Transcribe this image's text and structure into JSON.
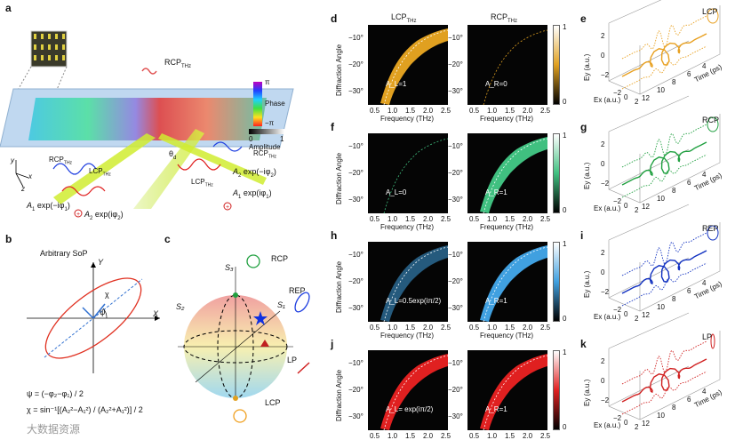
{
  "panels": {
    "a": "a",
    "b": "b",
    "c": "c",
    "d": "d",
    "e": "e",
    "f": "f",
    "g": "g",
    "h": "h",
    "i": "i",
    "j": "j",
    "k": "k"
  },
  "panel_a": {
    "rcp_incident": "RCP",
    "rcp_incident_sub": "THz",
    "rcp_out_sub": "THz",
    "lcp_out_sub": "THz",
    "rcp_label": "RCP",
    "lcp_label": "LCP",
    "theta": "θ",
    "theta_sub": "d",
    "left_amp_1": "A",
    "left_amp_1_rest": "exp(−iφ",
    "left_amp_2_rest": "exp(iφ",
    "right_amp_1_rest": "exp(−iφ",
    "right_amp_2_rest": "exp(iφ",
    "colorbar_top": "π",
    "colorbar_bottom": "−π",
    "colorbar_title": "Phase",
    "amp_0": "0",
    "amp_1": "1",
    "amp_title": "Amplitude",
    "axis_x": "x",
    "axis_y": "y",
    "axis_z": "z"
  },
  "panel_b": {
    "title": "Arbitrary SoP",
    "axis_x": "X",
    "axis_y": "Y",
    "psi": "ψ",
    "chi": "χ",
    "eq1": "ψ = (−φ₂−φ₁) / 2",
    "eq2": "χ = sin⁻¹[(A₂²−A₁²) / (A₂²+A₁²)] / 2"
  },
  "panel_c": {
    "s1": "S₁",
    "s2": "S₂",
    "s3": "S₃",
    "rcp": "RCP",
    "rep": "REP",
    "lp": "LP",
    "lcp": "LCP"
  },
  "columns": {
    "lcp": "LCP",
    "lcp_sub": "THz",
    "rcp": "RCP",
    "rcp_sub": "THz"
  },
  "axes": {
    "ylabel": "Diffraction Angle",
    "xlabel": "Frequency (THz)",
    "yticks": [
      "−10°",
      "−20°",
      "−30°"
    ],
    "xticks": [
      "0.5",
      "1.0",
      "1.5",
      "2.0",
      "2.5"
    ],
    "cbar_top": "1",
    "cbar_bottom": "0"
  },
  "rows": [
    {
      "id": "d",
      "left_annot": "A_L=1",
      "right_annot": "A_R=0",
      "color": "#e0a020"
    },
    {
      "id": "f",
      "left_annot": "A_L=0",
      "right_annot": "A_R=1",
      "color": "#40c080"
    },
    {
      "id": "h",
      "left_annot": "A_L=0.5exp(iπ/2)",
      "right_annot": "A_R=1",
      "color": "#40a0e0"
    },
    {
      "id": "j",
      "left_annot": "A_L= exp(iπ/2)",
      "right_annot": "A_R=1",
      "color": "#e02020"
    }
  ],
  "right_panels": [
    {
      "id": "e",
      "label": "LCP",
      "color": "#e8a020"
    },
    {
      "id": "g",
      "label": "RCP",
      "color": "#20a040"
    },
    {
      "id": "i",
      "label": "REP",
      "color": "#1030c0"
    },
    {
      "id": "k",
      "label": "LP",
      "color": "#d02020"
    }
  ],
  "time_axis": {
    "ey": "Ey (a.u.)",
    "ex": "Ex (a.u.)",
    "time": "Time (ps)",
    "ey_ticks": [
      "2",
      "0",
      "−2"
    ],
    "ex_ticks": [
      "−2",
      "0",
      "2"
    ],
    "t_ticks": [
      "4",
      "6",
      "8",
      "10",
      "12"
    ]
  },
  "watermark": "大数据资源"
}
